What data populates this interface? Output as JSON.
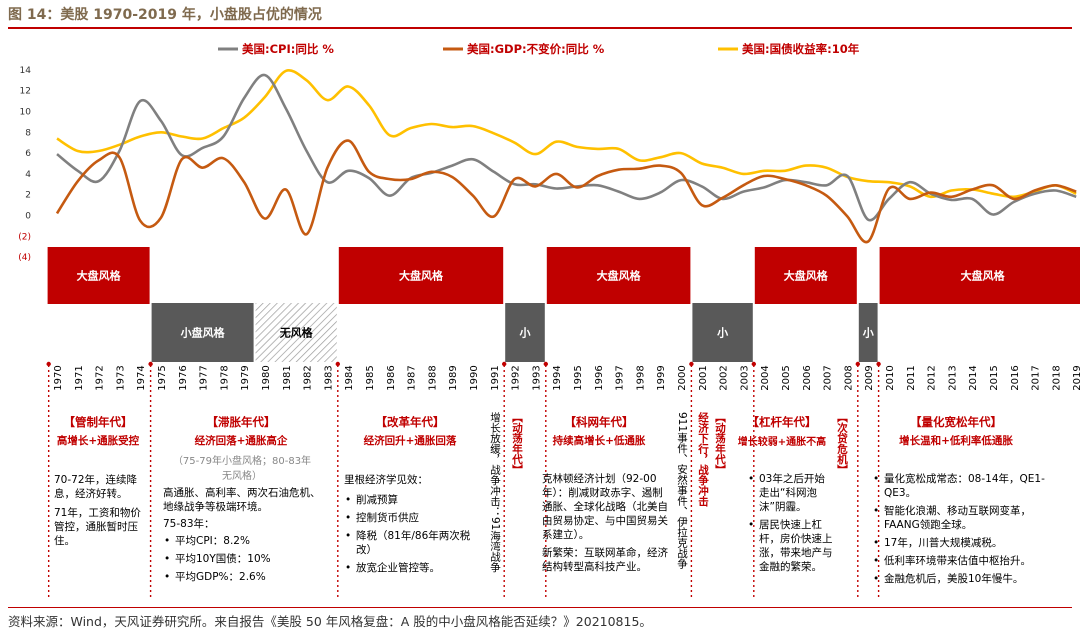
{
  "title": "图 14：美股 1970-2019 年，小盘股占优的情况",
  "source": "资料来源：Wind，天风证券研究所。来自报告《美股 50 年风格复盘：A 股的中小盘风格能否延续？》20210815。",
  "colors": {
    "cpi": "#808080",
    "gdp": "#c55a11",
    "yield": "#ffc000",
    "red": "#c00000",
    "gray": "#595959"
  },
  "chart_data": {
    "type": "line",
    "x": [
      1970,
      1971,
      1972,
      1973,
      1974,
      1975,
      1976,
      1977,
      1978,
      1979,
      1980,
      1981,
      1982,
      1983,
      1984,
      1985,
      1986,
      1987,
      1988,
      1989,
      1990,
      1991,
      1992,
      1993,
      1994,
      1995,
      1996,
      1997,
      1998,
      1999,
      2000,
      2001,
      2002,
      2003,
      2004,
      2005,
      2006,
      2007,
      2008,
      2009,
      2010,
      2011,
      2012,
      2013,
      2014,
      2015,
      2016,
      2017,
      2018,
      2019
    ],
    "ylim": [
      -4,
      14
    ],
    "ytick_labels": [
      "(4)",
      "(2)",
      "0",
      "2",
      "4",
      "6",
      "8",
      "10",
      "12",
      "14"
    ],
    "series": [
      {
        "name": "美国:CPI:同比 %",
        "values": [
          5.9,
          4.3,
          3.3,
          6.2,
          11.0,
          9.1,
          5.8,
          6.5,
          7.6,
          11.3,
          13.5,
          10.3,
          6.2,
          3.2,
          4.3,
          3.6,
          1.9,
          3.6,
          4.1,
          4.8,
          5.4,
          4.2,
          3.0,
          3.0,
          2.6,
          2.8,
          2.9,
          2.3,
          1.6,
          2.2,
          3.4,
          2.8,
          1.6,
          2.3,
          2.7,
          3.4,
          3.2,
          2.9,
          3.8,
          -0.4,
          1.6,
          3.2,
          2.1,
          1.5,
          1.6,
          0.1,
          1.3,
          2.1,
          2.4,
          1.8
        ]
      },
      {
        "name": "美国:GDP:不变价:同比 %",
        "values": [
          0.2,
          3.3,
          5.3,
          5.6,
          -0.5,
          -0.2,
          5.4,
          4.6,
          5.5,
          3.2,
          -0.3,
          2.5,
          -1.8,
          4.6,
          7.2,
          4.2,
          3.5,
          3.5,
          4.2,
          3.7,
          1.9,
          -0.1,
          3.5,
          2.8,
          4.0,
          2.7,
          3.8,
          4.4,
          4.5,
          4.8,
          4.1,
          1.0,
          1.7,
          2.9,
          3.8,
          3.5,
          2.9,
          1.9,
          -0.1,
          -2.5,
          2.6,
          1.6,
          2.2,
          1.8,
          2.5,
          2.9,
          1.6,
          2.4,
          2.9,
          2.3
        ]
      },
      {
        "name": "美国:国债收益率:10年",
        "values": [
          7.4,
          6.2,
          6.2,
          6.8,
          7.6,
          8.0,
          7.6,
          7.4,
          8.4,
          9.4,
          11.4,
          13.9,
          13.0,
          11.1,
          12.4,
          10.6,
          7.7,
          8.4,
          8.8,
          8.5,
          8.6,
          7.9,
          7.0,
          5.9,
          7.1,
          6.6,
          6.4,
          6.4,
          5.3,
          5.6,
          6.0,
          5.0,
          4.6,
          4.0,
          4.3,
          4.3,
          4.8,
          4.6,
          3.7,
          3.3,
          3.2,
          2.8,
          1.8,
          2.4,
          2.5,
          2.1,
          1.8,
          2.3,
          2.9,
          2.1
        ]
      }
    ]
  },
  "style_bands": [
    {
      "label": "大盘风格",
      "from": 1970,
      "to": 1974,
      "kind": "red"
    },
    {
      "label": "小盘风格",
      "from": 1975,
      "to": 1979,
      "kind": "gray"
    },
    {
      "label": "无风格",
      "from": 1980,
      "to": 1983,
      "kind": "hatch"
    },
    {
      "label": "大盘风格",
      "from": 1984,
      "to": 1991,
      "kind": "red"
    },
    {
      "label": "小",
      "from": 1992,
      "to": 1993,
      "kind": "gray"
    },
    {
      "label": "大盘风格",
      "from": 1994,
      "to": 2000,
      "kind": "red"
    },
    {
      "label": "小",
      "from": 2001,
      "to": 2003,
      "kind": "gray"
    },
    {
      "label": "大盘风格",
      "from": 2004,
      "to": 2008,
      "kind": "red"
    },
    {
      "label": "小",
      "from": 2009,
      "to": 2009,
      "kind": "gray"
    },
    {
      "label": "大盘风格",
      "from": 2010,
      "to": 2019,
      "kind": "red"
    }
  ],
  "eras": {
    "e1": {
      "title": "【管制年代】",
      "sub": "高增长+通胀受控",
      "p1": "70-72年，连续降息，经济好转。",
      "p2": "71年，工资和物价管控，通胀暂时压住。"
    },
    "e2": {
      "title": "【滞胀年代】",
      "sub": "经济回落+通胀高企",
      "gray": "（75-79年小盘风格；80-83年无风格）",
      "p1": "高通胀、高利率、两次石油危机、地缘战争等极端环境。",
      "p2": "75-83年：",
      "bullets": [
        "平均CPI：8.2%",
        "平均10Y国债：10%",
        "平均GDP%：2.6%"
      ]
    },
    "e3": {
      "title": "【改革年代】",
      "sub": "经济回升+通胀回落",
      "p1": "里根经济学见效：",
      "bullets": [
        "削减预算",
        "控制货币供应",
        "降税（81年/86年两次税改）",
        "放宽企业管控等。"
      ]
    },
    "e4": {
      "v1": "增长放缓，战争冲击：91海湾战争",
      "v2": "【动荡年代】"
    },
    "e5": {
      "title": "【科网年代】",
      "sub": "持续高增长+低通胀",
      "p1": "克林顿经济计划（92-00年）：削减财政赤字、遏制通胀、全球化战略（北美自由贸易协定、与中国贸易关系建立）。",
      "p2": "新繁荣：互联网革命，经济结构转型高科技产业。"
    },
    "e6": {
      "v1": "911事件、安然事件、伊拉克战争",
      "v2": "经济下行，战争冲击",
      "v3": "【动荡年代】"
    },
    "e7": {
      "title": "【杠杆年代】",
      "sub": "增长较弱+通胀不高",
      "bullets": [
        "03年之后开始走出“科网泡沫”阴霾。",
        "居民快速上杠杆，房价快速上涨，带来地产与金融的繁荣。"
      ]
    },
    "e8": {
      "v1": "【次贷危机】"
    },
    "e9": {
      "title": "【量化宽松年代】",
      "sub": "增长温和+低利率低通胀",
      "bullets": [
        "量化宽松成常态：08-14年，QE1-QE3。",
        "智能化浪潮、移动互联网变革，FAANG领跑全球。",
        "17年，川普大规模减税。",
        "低利率环境带来估值中枢抬升。",
        "金融危机后，美股10年慢牛。"
      ]
    }
  }
}
